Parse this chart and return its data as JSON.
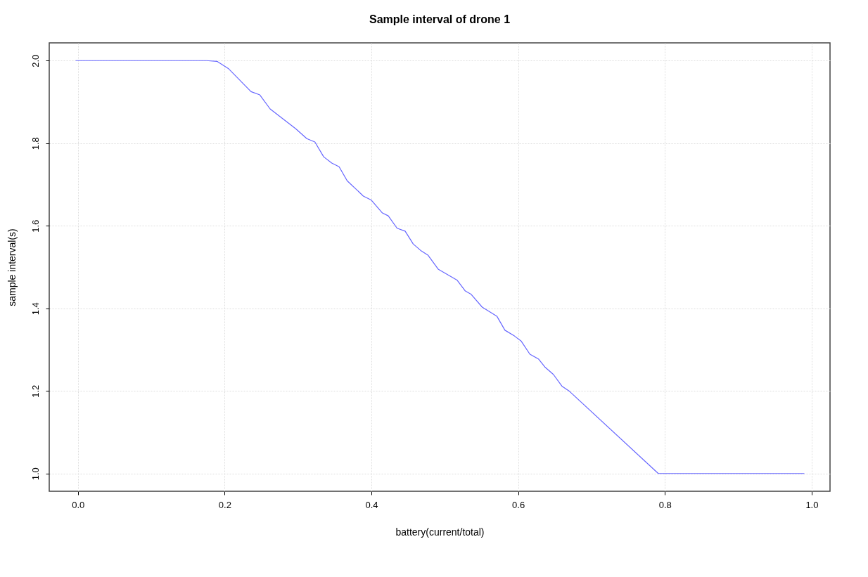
{
  "chart_data": {
    "type": "line",
    "title": "Sample interval of drone 1",
    "xlabel": "battery(current/total)",
    "ylabel": "sample interval(s)",
    "x": [
      -0.003,
      0.175,
      0.19,
      0.205,
      0.236,
      0.248,
      0.262,
      0.297,
      0.312,
      0.323,
      0.335,
      0.346,
      0.356,
      0.367,
      0.389,
      0.4,
      0.415,
      0.423,
      0.435,
      0.446,
      0.457,
      0.468,
      0.477,
      0.491,
      0.517,
      0.528,
      0.536,
      0.551,
      0.571,
      0.582,
      0.595,
      0.604,
      0.616,
      0.628,
      0.637,
      0.648,
      0.66,
      0.67,
      0.791,
      0.99
    ],
    "series": [
      {
        "color": "#6666ff",
        "values": [
          2.0,
          2.0,
          1.998,
          1.981,
          1.925,
          1.917,
          1.883,
          1.835,
          1.811,
          1.803,
          1.767,
          1.752,
          1.743,
          1.709,
          1.672,
          1.662,
          1.631,
          1.624,
          1.594,
          1.587,
          1.556,
          1.539,
          1.529,
          1.495,
          1.468,
          1.442,
          1.434,
          1.403,
          1.381,
          1.347,
          1.333,
          1.321,
          1.289,
          1.277,
          1.257,
          1.24,
          1.211,
          1.199,
          1.0,
          1.0
        ]
      }
    ],
    "xlim": [
      -0.039,
      1.025
    ],
    "ylim": [
      0.957,
      2.043
    ],
    "xticks": [
      {
        "value": 0,
        "label": "0.0"
      },
      0.2,
      0.4,
      0.6,
      0.8,
      {
        "value": 1,
        "label": "1.0"
      }
    ],
    "yticks": [
      {
        "value": 1,
        "label": "1.0"
      },
      1.2,
      1.4,
      1.6,
      1.8,
      {
        "value": 2,
        "label": "2.0"
      }
    ],
    "grid": true,
    "line_style": "solid",
    "marker": "none"
  }
}
